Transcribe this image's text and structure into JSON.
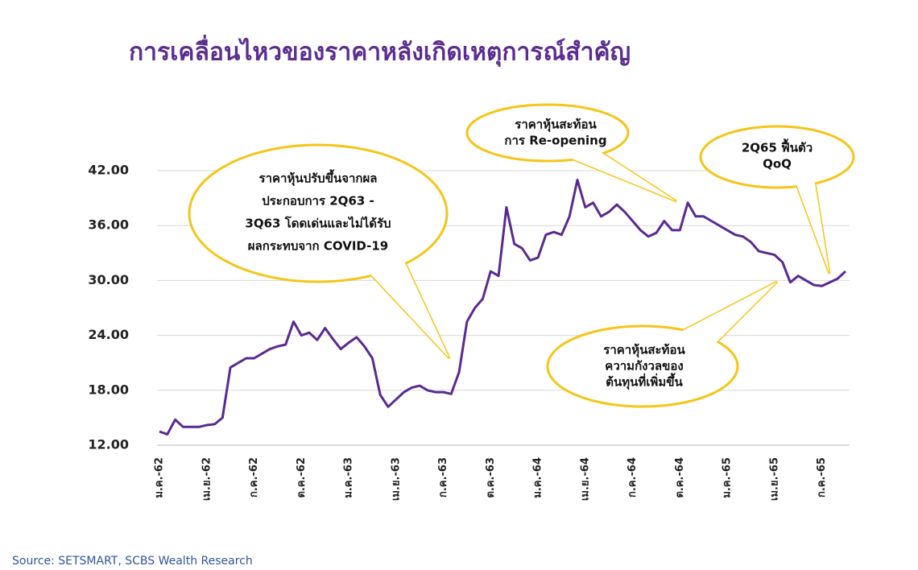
{
  "chart_data": {
    "type": "line",
    "title": "การเคลื่อนไหวของราคาหลังเกิดเหตุการณ์สำคัญ",
    "source": "Source: SETSMART, SCBS Wealth Research",
    "annotations": [
      [
        "ราคาหุ้นปรับขึ้นจากผล",
        "ประกอบการ 2Q63 -",
        "3Q63 โดดเด่นและไม่ได้รับ",
        "ผลกระทบจาก COVID-19"
      ],
      [
        "ราคาหุ้นสะท้อน",
        "การ Re-opening"
      ],
      [
        "2Q65 ฟื้นตัว",
        "QoQ"
      ],
      [
        "ราคาหุ้นสะท้อน",
        "ความกังวลของ",
        "ต้นทุนที่เพิ่มขึ้น"
      ]
    ],
    "categories": [
      "ม.ค.-62",
      null,
      null,
      null,
      null,
      null,
      "เม.ย.-62",
      null,
      null,
      null,
      null,
      null,
      "ก.ค.-62",
      null,
      null,
      null,
      null,
      null,
      "ต.ค.-62",
      null,
      null,
      null,
      null,
      null,
      "ม.ค.-63",
      null,
      null,
      null,
      null,
      null,
      "เม.ย.-63",
      null,
      null,
      null,
      null,
      null,
      "ก.ค.-63",
      null,
      null,
      null,
      null,
      null,
      "ต.ค.-63",
      null,
      null,
      null,
      null,
      null,
      "ม.ค.-64",
      null,
      null,
      null,
      null,
      null,
      "เม.ย.-64",
      null,
      null,
      null,
      null,
      null,
      "ก.ค.-64",
      null,
      null,
      null,
      null,
      null,
      "ต.ค.-64",
      null,
      null,
      null,
      null,
      null,
      "ม.ค.-65",
      null,
      null,
      null,
      null,
      null,
      "เม.ย.-65",
      null,
      null,
      null,
      null,
      null,
      "ก.ค.-65",
      null,
      null,
      null
    ],
    "color": "#5a2a91",
    "values": [
      13.5,
      13.2,
      14.8,
      14.0,
      14.0,
      14.0,
      14.2,
      14.3,
      15.0,
      20.5,
      21.0,
      21.5,
      21.5,
      22.0,
      22.5,
      22.8,
      23.0,
      25.5,
      24.0,
      24.3,
      23.5,
      24.8,
      23.6,
      22.5,
      23.2,
      23.8,
      22.8,
      21.5,
      17.5,
      16.2,
      17.0,
      17.8,
      18.3,
      18.5,
      18.0,
      17.8,
      17.8,
      17.6,
      20.0,
      25.5,
      27.0,
      28.0,
      31.0,
      30.5,
      38.0,
      34.0,
      33.5,
      32.2,
      32.5,
      35.0,
      35.3,
      35.0,
      37.0,
      41.0,
      38.0,
      38.5,
      37.0,
      37.5,
      38.3,
      37.5,
      36.5,
      35.5,
      34.8,
      35.2,
      36.5,
      35.5,
      35.5,
      38.5,
      37.0,
      37.0,
      36.5,
      36.0,
      35.5,
      35.0,
      34.8,
      34.2,
      33.2,
      33.0,
      32.8,
      32.0,
      29.8,
      30.5,
      30.0,
      29.5,
      29.4,
      29.8,
      30.2,
      31.0
    ],
    "ylim": [
      12,
      42
    ],
    "yticks": [
      {
        "value": 12,
        "label": "12.00"
      },
      {
        "value": 18,
        "label": "18.00"
      },
      {
        "value": 24,
        "label": "24.00"
      },
      {
        "value": 30,
        "label": "30.00"
      },
      {
        "value": 36,
        "label": "36.00"
      },
      {
        "value": 42,
        "label": "42.00"
      }
    ],
    "grid": true
  }
}
